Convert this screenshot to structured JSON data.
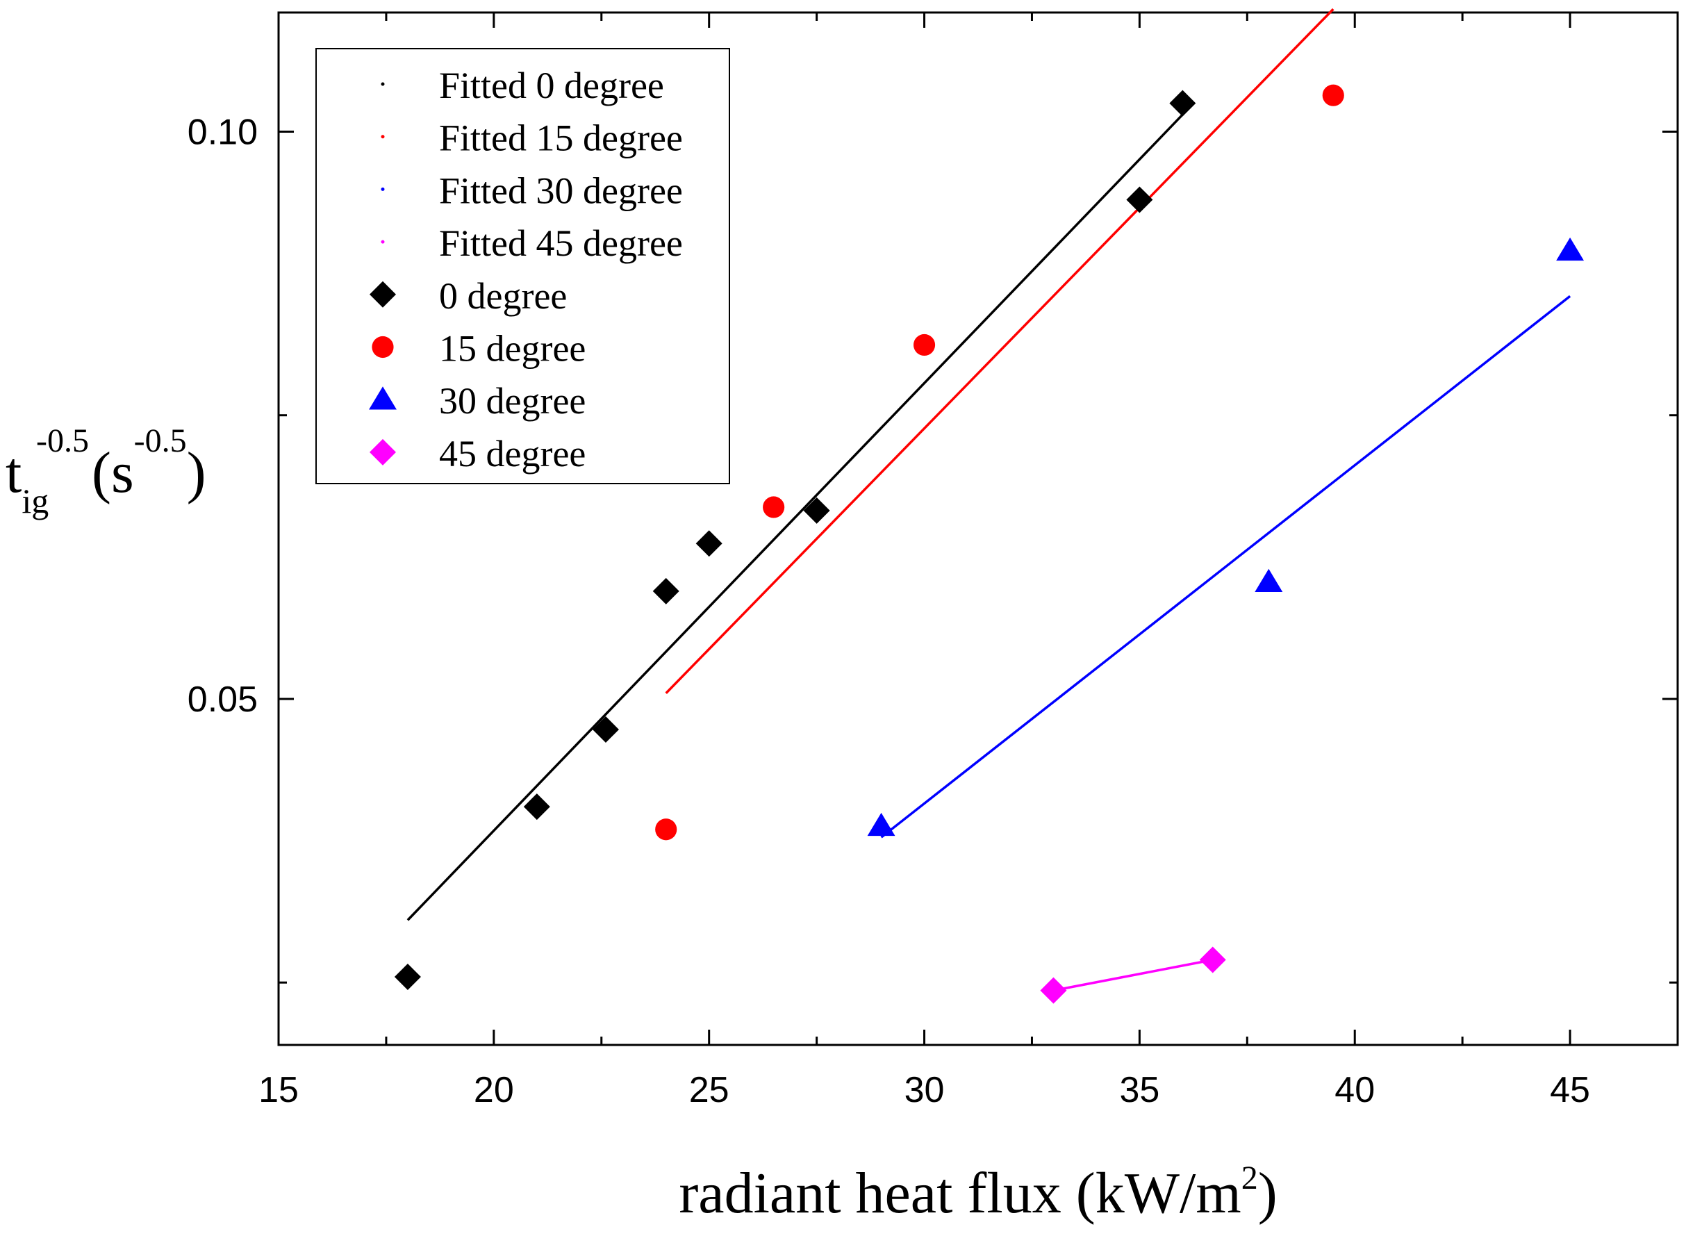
{
  "chart_data": {
    "type": "scatter",
    "xlabel": {
      "main": "radiant heat flux (kW/m",
      "sup": "2",
      "close": ")"
    },
    "ylabel": {
      "t": "t",
      "sub": "ig",
      "sup1": "-0.5",
      "mid": "(s",
      "sup2": "-0.5",
      "close": ")"
    },
    "xlim": [
      15,
      47.5
    ],
    "ylim": [
      0.0195,
      0.1105
    ],
    "x_ticks": [
      15,
      20,
      25,
      30,
      35,
      40,
      45
    ],
    "x_tick_labels": [
      "15",
      "20",
      "25",
      "30",
      "35",
      "40",
      "45"
    ],
    "y_ticks_labeled": [
      0.05,
      0.1
    ],
    "y_tick_labels": [
      "0.05",
      "0.10"
    ],
    "y_ticks_minor": [
      0.025,
      0.075
    ],
    "series": [
      {
        "name": "0  degree",
        "marker": "diamond",
        "color": "#000000",
        "x": [
          18,
          21,
          22.6,
          24,
          25,
          27.5,
          35,
          36
        ],
        "y": [
          0.0255,
          0.0405,
          0.0473,
          0.0595,
          0.0637,
          0.0666,
          0.094,
          0.1025
        ]
      },
      {
        "name": "15 degree",
        "marker": "circle",
        "color": "#ff0000",
        "x": [
          24,
          26.5,
          30,
          39.5
        ],
        "y": [
          0.0385,
          0.0669,
          0.0812,
          0.1032
        ]
      },
      {
        "name": "30 degree",
        "marker": "triangle",
        "color": "#0000ff",
        "x": [
          29,
          38,
          45
        ],
        "y": [
          0.0388,
          0.0603,
          0.0895
        ]
      },
      {
        "name": "45 degree",
        "marker": "diamond",
        "color": "#ff00ff",
        "x": [
          33,
          36.7
        ],
        "y": [
          0.0243,
          0.027
        ]
      }
    ],
    "fits": [
      {
        "name": "Fitted 0  degree",
        "color": "#000000",
        "x": [
          18,
          36
        ],
        "y": [
          0.0305,
          0.1015
        ]
      },
      {
        "name": "Fitted 15 degree",
        "color": "#ff0000",
        "x": [
          24,
          39.5
        ],
        "y": [
          0.0505,
          0.1108
        ]
      },
      {
        "name": "Fitted 30 degree",
        "color": "#0000ff",
        "x": [
          29,
          45
        ],
        "y": [
          0.0378,
          0.0855
        ]
      },
      {
        "name": "Fitted 45 degree",
        "color": "#ff00ff",
        "x": [
          33,
          36.7
        ],
        "y": [
          0.0243,
          0.027
        ]
      }
    ],
    "legend": {
      "placement": "top-left",
      "entries": [
        {
          "label": "Fitted 0  degree",
          "kind": "dot",
          "color": "#000000"
        },
        {
          "label": "Fitted 15 degree",
          "kind": "dot",
          "color": "#ff0000"
        },
        {
          "label": "Fitted 30 degree",
          "kind": "dot",
          "color": "#0000ff"
        },
        {
          "label": "Fitted 45 degree",
          "kind": "dot",
          "color": "#ff00ff"
        },
        {
          "label": "0  degree",
          "kind": "diamond",
          "color": "#000000"
        },
        {
          "label": "15 degree",
          "kind": "circle",
          "color": "#ff0000"
        },
        {
          "label": "30 degree",
          "kind": "triangle",
          "color": "#0000ff"
        },
        {
          "label": "45 degree",
          "kind": "diamond",
          "color": "#ff00ff"
        }
      ]
    }
  }
}
